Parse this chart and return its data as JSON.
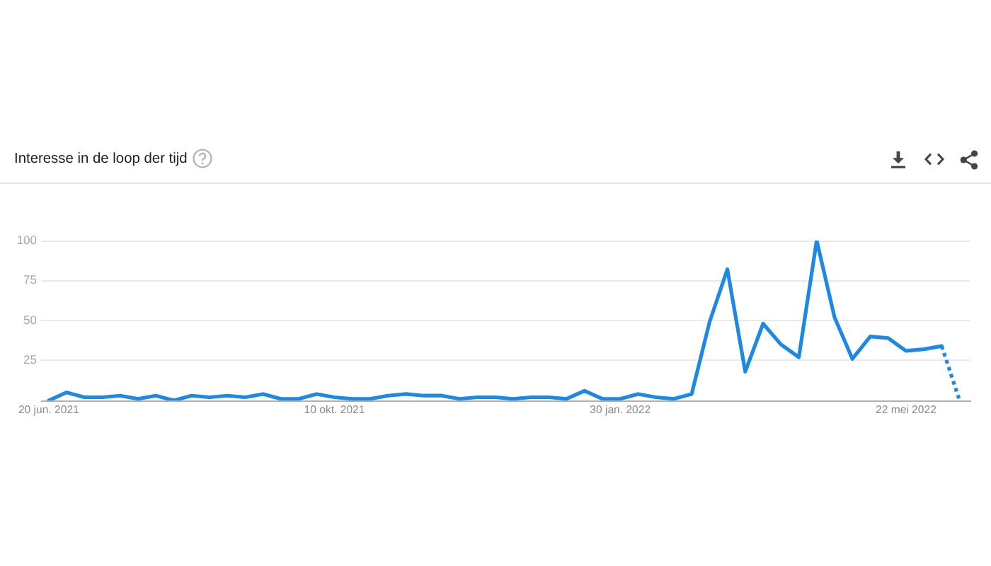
{
  "chart_data": {
    "type": "line",
    "title": "Interesse in de loop der tijd",
    "x": [
      "2021-06-20",
      "2021-06-27",
      "2021-07-04",
      "2021-07-11",
      "2021-07-18",
      "2021-07-25",
      "2021-08-01",
      "2021-08-08",
      "2021-08-15",
      "2021-08-22",
      "2021-08-29",
      "2021-09-05",
      "2021-09-12",
      "2021-09-19",
      "2021-09-26",
      "2021-10-03",
      "2021-10-10",
      "2021-10-17",
      "2021-10-24",
      "2021-10-31",
      "2021-11-07",
      "2021-11-14",
      "2021-11-21",
      "2021-11-28",
      "2021-12-05",
      "2021-12-12",
      "2021-12-19",
      "2021-12-26",
      "2022-01-02",
      "2022-01-09",
      "2022-01-16",
      "2022-01-23",
      "2022-01-30",
      "2022-02-06",
      "2022-02-13",
      "2022-02-20",
      "2022-02-27",
      "2022-03-06",
      "2022-03-13",
      "2022-03-20",
      "2022-03-27",
      "2022-04-03",
      "2022-04-10",
      "2022-04-17",
      "2022-04-24",
      "2022-05-01",
      "2022-05-08",
      "2022-05-15",
      "2022-05-22",
      "2022-05-29",
      "2022-06-05",
      "2022-06-12"
    ],
    "series": [
      {
        "color": "#1e88e5",
        "values": [
          0,
          5,
          2,
          2,
          3,
          1,
          3,
          0,
          3,
          2,
          3,
          2,
          4,
          1,
          1,
          4,
          2,
          1,
          1,
          3,
          4,
          3,
          3,
          1,
          2,
          2,
          1,
          2,
          2,
          1,
          6,
          1,
          1,
          4,
          2,
          1,
          4,
          49,
          82,
          18,
          48,
          35,
          27,
          100,
          52,
          26,
          40,
          39,
          31,
          32,
          34,
          null
        ]
      },
      {
        "color": "#1e88e5",
        "line_style": "dotted",
        "values": [
          null,
          null,
          null,
          null,
          null,
          null,
          null,
          null,
          null,
          null,
          null,
          null,
          null,
          null,
          null,
          null,
          null,
          null,
          null,
          null,
          null,
          null,
          null,
          null,
          null,
          null,
          null,
          null,
          null,
          null,
          null,
          null,
          null,
          null,
          null,
          null,
          null,
          null,
          null,
          null,
          null,
          null,
          null,
          null,
          null,
          null,
          null,
          null,
          null,
          null,
          34,
          0
        ]
      }
    ],
    "xlim": [
      "2021-06-17",
      "2022-06-16"
    ],
    "xticks": [
      {
        "value": "2021-06-20",
        "label": "20 jun. 2021"
      },
      {
        "value": "2021-10-10",
        "label": "10 okt. 2021"
      },
      {
        "value": "2022-01-30",
        "label": "30 jan. 2022"
      },
      {
        "value": "2022-05-22",
        "label": "22 mei 2022"
      }
    ],
    "ylim": [
      0,
      100
    ],
    "yticks": [
      {
        "value": 0,
        "label": null
      },
      25,
      50,
      75,
      100
    ],
    "grid": "y",
    "marker": "none",
    "line_style": "solid"
  }
}
